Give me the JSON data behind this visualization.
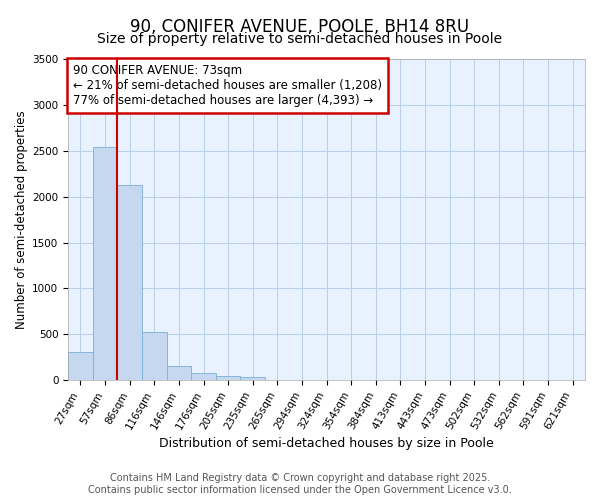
{
  "title": "90, CONIFER AVENUE, POOLE, BH14 8RU",
  "subtitle": "Size of property relative to semi-detached houses in Poole",
  "xlabel": "Distribution of semi-detached houses by size in Poole",
  "ylabel": "Number of semi-detached properties",
  "categories": [
    "27sqm",
    "57sqm",
    "86sqm",
    "116sqm",
    "146sqm",
    "176sqm",
    "205sqm",
    "235sqm",
    "265sqm",
    "294sqm",
    "324sqm",
    "354sqm",
    "384sqm",
    "413sqm",
    "443sqm",
    "473sqm",
    "502sqm",
    "532sqm",
    "562sqm",
    "591sqm",
    "621sqm"
  ],
  "values": [
    310,
    2540,
    2130,
    530,
    150,
    75,
    45,
    30,
    0,
    0,
    0,
    0,
    0,
    0,
    0,
    0,
    0,
    0,
    0,
    0,
    0
  ],
  "bar_color": "#c5d8f0",
  "bar_edge_color": "#7bafd4",
  "red_line_x": 1.5,
  "property_label": "90 CONIFER AVENUE: 73sqm",
  "smaller_label": "← 21% of semi-detached houses are smaller (1,208)",
  "larger_label": "77% of semi-detached houses are larger (4,393) →",
  "ylim": [
    0,
    3500
  ],
  "annotation_box_color": "#cc0000",
  "footer_line1": "Contains HM Land Registry data © Crown copyright and database right 2025.",
  "footer_line2": "Contains public sector information licensed under the Open Government Licence v3.0.",
  "background_color": "#ffffff",
  "plot_bg_color": "#e8f2ff",
  "grid_color": "#b8cfe8",
  "title_fontsize": 12,
  "subtitle_fontsize": 10,
  "annotation_fontsize": 8.5,
  "xlabel_fontsize": 9,
  "ylabel_fontsize": 8.5,
  "tick_fontsize": 7.5,
  "footer_fontsize": 7
}
